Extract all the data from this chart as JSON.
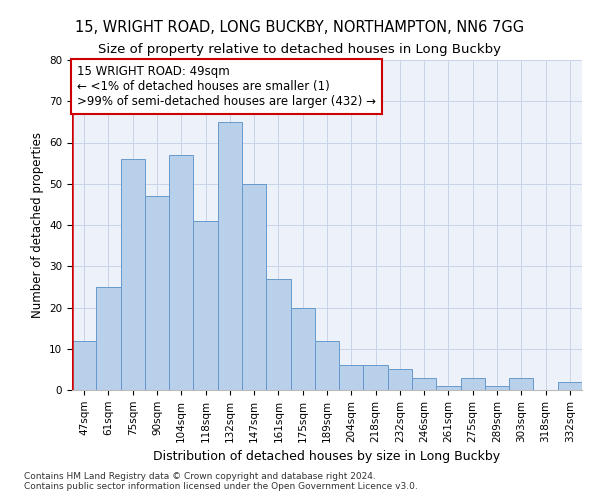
{
  "title1": "15, WRIGHT ROAD, LONG BUCKBY, NORTHAMPTON, NN6 7GG",
  "title2": "Size of property relative to detached houses in Long Buckby",
  "xlabel": "Distribution of detached houses by size in Long Buckby",
  "ylabel": "Number of detached properties",
  "footnote1": "Contains HM Land Registry data © Crown copyright and database right 2024.",
  "footnote2": "Contains public sector information licensed under the Open Government Licence v3.0.",
  "annotation_line1": "15 WRIGHT ROAD: 49sqm",
  "annotation_line2": "← <1% of detached houses are smaller (1)",
  "annotation_line3": ">99% of semi-detached houses are larger (432) →",
  "bar_labels": [
    "47sqm",
    "61sqm",
    "75sqm",
    "90sqm",
    "104sqm",
    "118sqm",
    "132sqm",
    "147sqm",
    "161sqm",
    "175sqm",
    "189sqm",
    "204sqm",
    "218sqm",
    "232sqm",
    "246sqm",
    "261sqm",
    "275sqm",
    "289sqm",
    "303sqm",
    "318sqm",
    "332sqm"
  ],
  "bar_values": [
    12,
    25,
    56,
    47,
    57,
    41,
    65,
    50,
    27,
    20,
    12,
    6,
    6,
    5,
    3,
    1,
    3,
    1,
    3,
    0,
    2
  ],
  "bar_color": "#b8d0ea",
  "bar_edge_color": "#6699cc",
  "highlight_color": "#cc0000",
  "ylim": [
    0,
    80
  ],
  "yticks": [
    0,
    10,
    20,
    30,
    40,
    50,
    60,
    70,
    80
  ],
  "grid_color": "#c8d4e8",
  "background_color": "#edf2fa",
  "title1_fontsize": 10.5,
  "title2_fontsize": 9.5,
  "xlabel_fontsize": 9,
  "ylabel_fontsize": 8.5,
  "annotation_box_color": "#ffffff",
  "annotation_box_edgecolor": "#cc0000",
  "annotation_fontsize": 8.5,
  "tick_fontsize": 7.5,
  "footnote_fontsize": 6.5
}
